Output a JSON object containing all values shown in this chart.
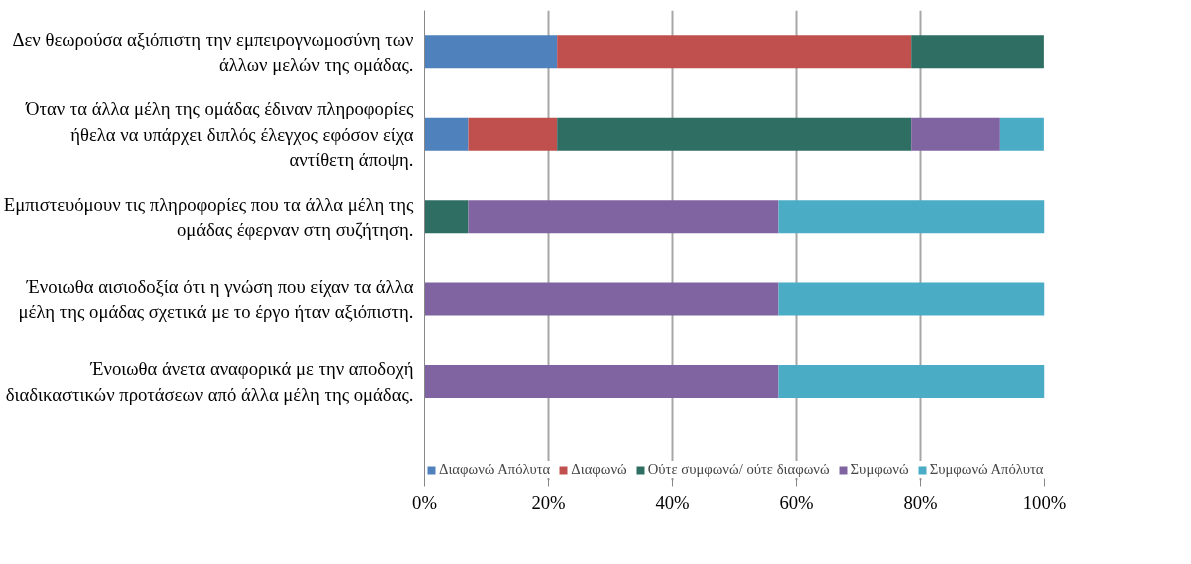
{
  "chart_data": {
    "type": "bar",
    "orientation": "horizontal",
    "stacked": true,
    "categories": [
      "Δεν θεωρούσα αξιόπιστη την εμπειρογνωμοσύνη των άλλων μελών της ομάδας.",
      "Όταν τα άλλα μέλη της ομάδας έδιναν πληροφορίες ήθελα να υπάρχει διπλός έλεγχος εφόσον είχα αντίθετη άποψη.",
      "Εμπιστευόμουν τις πληροφορίες που τα άλλα μέλη της ομάδας έφερναν στη συζήτηση.",
      "Ένοιωθα αισιοδοξία ότι η γνώση που είχαν τα άλλα μέλη της ομάδας σχετικά με το έργο ήταν αξιόπιστη.",
      "Ένοιωθα άνετα αναφορικά με την αποδοχή διαδικαστικών προτάσεων από άλλα μέλη της ομάδας."
    ],
    "series": [
      {
        "name": "Διαφωνώ Απόλυτα",
        "color": "#4f81bd",
        "values": [
          21.4,
          7.1,
          0,
          0,
          0
        ]
      },
      {
        "name": "Διαφωνώ",
        "color": "#c0504d",
        "values": [
          57.1,
          14.3,
          0,
          0,
          0
        ]
      },
      {
        "name": "Ούτε συμφωνώ/ ούτε διαφωνώ",
        "color": "#2e6e63",
        "values": [
          21.4,
          57.1,
          7.1,
          0,
          0
        ]
      },
      {
        "name": "Συμφωνώ",
        "color": "#8064a2",
        "values": [
          0,
          14.3,
          50,
          57.1,
          57.1
        ]
      },
      {
        "name": "Συμφωνώ Απόλυτα",
        "color": "#4bacc6",
        "values": [
          0,
          7.1,
          42.9,
          42.9,
          42.9
        ]
      }
    ],
    "xlim": [
      0,
      100
    ],
    "xticks": [
      {
        "value": 0,
        "label": "0%"
      },
      {
        "value": 20,
        "label": "20%"
      },
      {
        "value": 40,
        "label": "40%"
      },
      {
        "value": 60,
        "label": "60%"
      },
      {
        "value": 80,
        "label": "80%"
      },
      {
        "value": 100,
        "label": "100%"
      }
    ],
    "grid": "x",
    "legend": "bottom"
  }
}
